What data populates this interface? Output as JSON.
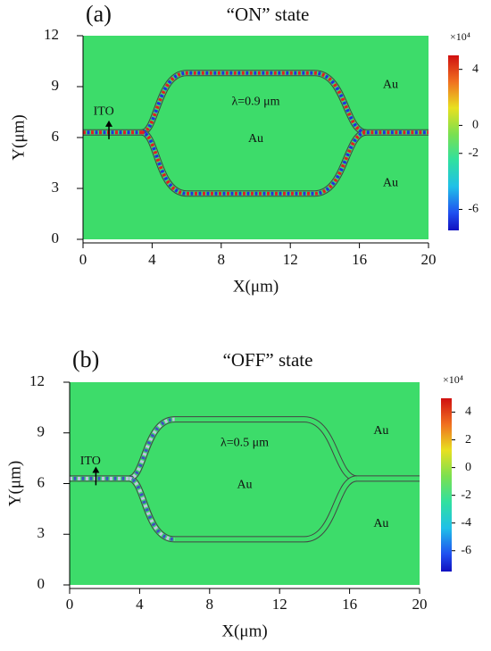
{
  "chart_data": [
    {
      "type": "heatmap",
      "panel_label": "(a)",
      "title": "“ON” state",
      "x_label": "X(μm)",
      "y_label": "Y(μm)",
      "xlim": [
        0,
        20
      ],
      "ylim": [
        0,
        12
      ],
      "xticks": [
        0,
        4,
        8,
        12,
        16,
        20
      ],
      "yticks": [
        0,
        3,
        6,
        9,
        12
      ],
      "background_color": "#3ddc6a",
      "colorbar": {
        "label": "×10⁴",
        "lim": [
          -7.5,
          5
        ],
        "ticks": [
          -6,
          -2,
          0,
          4
        ]
      },
      "annotations": [
        "λ=0.9 μm",
        "Au",
        "Au",
        "Au",
        "ITO"
      ]
    },
    {
      "type": "heatmap",
      "panel_label": "(b)",
      "title": "“OFF” state",
      "x_label": "X(μm)",
      "y_label": "Y(μm)",
      "xlim": [
        0,
        20
      ],
      "ylim": [
        0,
        12
      ],
      "xticks": [
        0,
        4,
        8,
        12,
        16,
        20
      ],
      "yticks": [
        0,
        3,
        6,
        9,
        12
      ],
      "background_color": "#3ddc6a",
      "colorbar": {
        "label": "×10⁴",
        "lim": [
          -7.5,
          5
        ],
        "ticks": [
          -6,
          -4,
          -2,
          0,
          2,
          4
        ]
      },
      "annotations": [
        "λ=0.5 μm",
        "Au",
        "Au",
        "Au",
        "ITO"
      ]
    }
  ]
}
